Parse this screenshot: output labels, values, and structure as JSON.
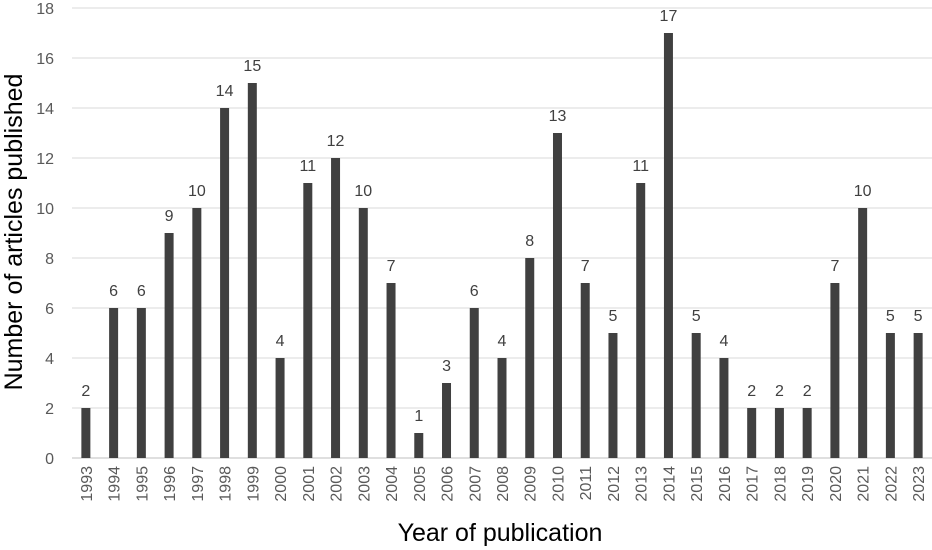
{
  "chart_data": {
    "type": "bar",
    "title": "",
    "xlabel": "Year of publication",
    "ylabel": "Number of articles published",
    "ylim": [
      0,
      18
    ],
    "yticks": [
      0,
      2,
      4,
      6,
      8,
      10,
      12,
      14,
      16,
      18
    ],
    "grid": true,
    "legend": "none",
    "bar_color": "#404040",
    "categories": [
      "1993",
      "1994",
      "1995",
      "1996",
      "1997",
      "1998",
      "1999",
      "2000",
      "2001",
      "2002",
      "2003",
      "2004",
      "2005",
      "2006",
      "2007",
      "2008",
      "2009",
      "2010",
      "2011",
      "2012",
      "2013",
      "2014",
      "2015",
      "2016",
      "2017",
      "2018",
      "2019",
      "2020",
      "2021",
      "2022",
      "2023"
    ],
    "values": [
      2,
      6,
      6,
      9,
      10,
      14,
      15,
      4,
      11,
      12,
      10,
      7,
      1,
      3,
      6,
      4,
      8,
      13,
      7,
      5,
      11,
      17,
      5,
      4,
      2,
      2,
      2,
      7,
      10,
      5,
      5
    ],
    "data_labels": true
  }
}
